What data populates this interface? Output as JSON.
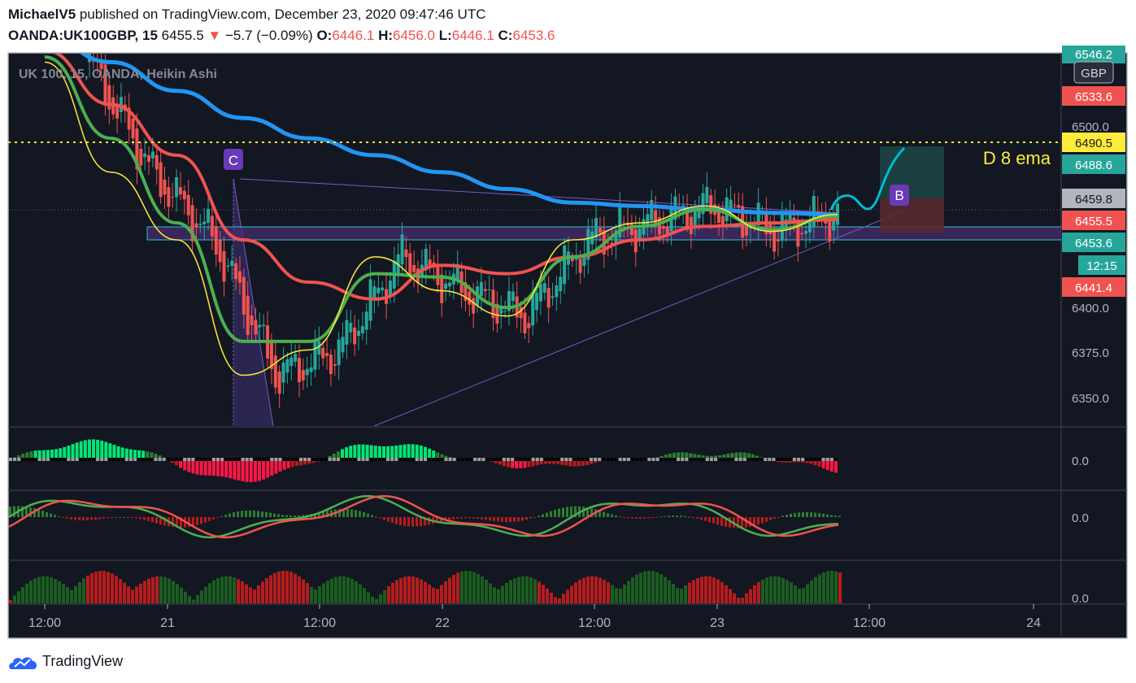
{
  "header": {
    "publisher": "MichaelV5",
    "published_text": "published on TradingView.com, December 23, 2020 09:47:46 UTC",
    "symbol": "OANDA:UK100GBP, 15",
    "price": "6455.5",
    "change_arrow": "▼",
    "change": "−5.7 (−0.09%)",
    "o_label": "O:",
    "o_value": "6446.1",
    "h_label": "H:",
    "h_value": "6456.0",
    "l_label": "L:",
    "l_value": "6446.1",
    "c_label": "C:",
    "c_value": "6453.6"
  },
  "chart_legend": "UK 100, 15, OANDA, Heikin Ashi",
  "currency_badge": "GBP",
  "annotations": {
    "d8_label": "D 8 ema",
    "wave_c": "C",
    "wave_b": "B"
  },
  "price_labels": [
    {
      "text": "6546.2",
      "color": "#26a69a"
    },
    {
      "text": "6533.6",
      "color": "#ef5350"
    },
    {
      "text": "6490.5",
      "color": "#ffeb3b"
    },
    {
      "text": "6488.6",
      "color": "#26a69a"
    },
    {
      "text": "6459.8",
      "color": "#b2b5be"
    },
    {
      "text": "6455.5",
      "color": "#ef5350"
    },
    {
      "text": "6453.6",
      "color": "#26a69a"
    },
    {
      "text": "12:15",
      "color": "#26a69a"
    },
    {
      "text": "6441.4",
      "color": "#ef5350"
    }
  ],
  "price_axis_ticks": [
    "6500.0",
    "6400.0",
    "6375.0",
    "6350.0"
  ],
  "oscillator_zero_labels": [
    "0.0",
    "0.0",
    "0.0"
  ],
  "time_axis_ticks": [
    "12:00",
    "21",
    "12:00",
    "22",
    "12:00",
    "23",
    "12:00",
    "24"
  ],
  "chart_data": {
    "type": "line",
    "title": "UK 100, 15, OANDA, Heikin Ashi",
    "chart_style": "heikin-ashi candles",
    "x_label": "",
    "y_label": "",
    "ylim": [
      6330,
      6550
    ],
    "x": [
      "20 12:00",
      "20 18:00",
      "21 00:00",
      "21 06:00",
      "21 12:00",
      "21 18:00",
      "22 00:00",
      "22 06:00",
      "22 12:00",
      "22 18:00",
      "23 00:00",
      "23 06:00",
      "23 09:45"
    ],
    "series": [
      {
        "name": "",
        "color": "#2196f3",
        "values": [
          6560,
          6545,
          6528,
          6512,
          6500,
          6490,
          6480,
          6470,
          6462,
          6460,
          6458,
          6456,
          6455
        ]
      },
      {
        "name": "",
        "color": "#ef5350",
        "values": [
          6552,
          6520,
          6490,
          6440,
          6415,
          6405,
          6425,
          6420,
          6430,
          6440,
          6448,
          6450,
          6452
        ]
      },
      {
        "name": "",
        "color": "#4caf50",
        "values": [
          6548,
          6500,
          6450,
          6380,
          6380,
          6420,
          6418,
          6400,
          6430,
          6448,
          6458,
          6446,
          6454
        ]
      },
      {
        "name": "",
        "color": "#ffeb3b",
        "values": [
          6545,
          6480,
          6440,
          6360,
          6375,
          6430,
          6410,
          6395,
          6440,
          6450,
          6460,
          6445,
          6455
        ]
      }
    ],
    "annotations": [
      {
        "type": "horizontal_line",
        "y": 6490.5,
        "label": "D 8 ema",
        "color": "#ffeb3b"
      },
      {
        "type": "zone",
        "y_range": [
          6450,
          6458
        ],
        "color": "#7b1fa2"
      },
      {
        "type": "long_position",
        "entry": 6455.5,
        "target": 6488.6,
        "stop": 6441.4
      }
    ],
    "legend": "none",
    "grid": false
  }
}
